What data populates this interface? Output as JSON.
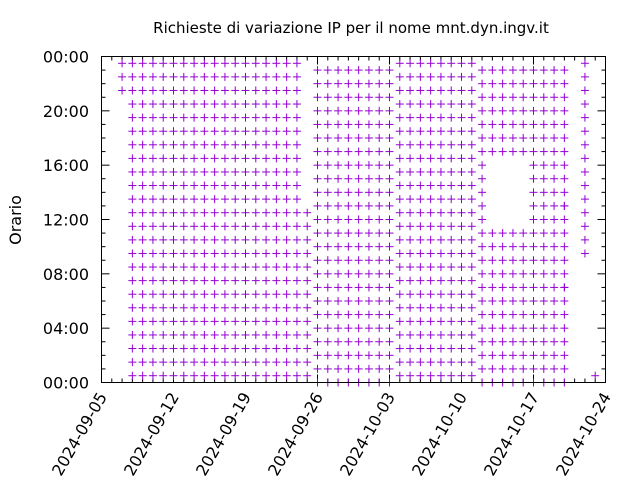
{
  "chart_data": {
    "type": "scatter",
    "title": "Richieste di variazione IP per il nome mnt.dyn.ingv.it",
    "xlabel": "",
    "ylabel": "Orario",
    "xlim": [
      "2024-09-05",
      "2024-10-24"
    ],
    "ylim": [
      "00:00",
      "24:00"
    ],
    "x_ticks": [
      "2024-09-05",
      "2024-09-12",
      "2024-09-19",
      "2024-09-26",
      "2024-10-03",
      "2024-10-10",
      "2024-10-17",
      "2024-10-24"
    ],
    "y_ticks": [
      "00:00",
      "04:00",
      "08:00",
      "12:00",
      "16:00",
      "20:00",
      "00:00"
    ],
    "marker": "+",
    "color": "#9400d3",
    "grid": false,
    "legend": "none",
    "series": [
      {
        "values_note_free": true,
        "points": [
          [
            "2024-09-07 21:30",
            "2024-09-07 22:30",
            "2024-09-07 23:30"
          ],
          [
            "2024-09-08 00:30",
            "2024-09-08 01:30",
            "2024-09-08 02:30",
            "2024-09-08 03:30",
            "2024-09-08 04:30",
            "2024-09-08 05:30",
            "2024-09-08 06:30",
            "2024-09-08 07:30",
            "2024-09-08 08:30",
            "2024-09-08 09:30",
            "2024-09-08 10:30",
            "2024-09-08 11:30",
            "2024-09-08 12:30",
            "2024-09-08 13:30",
            "2024-09-08 14:30",
            "2024-09-08 15:30",
            "2024-09-08 16:30",
            "2024-09-08 17:30",
            "2024-09-08 18:30",
            "2024-09-08 19:30",
            "2024-09-08 20:30",
            "2024-09-08 21:30",
            "2024-09-08 22:30",
            "2024-09-08 23:30"
          ]
        ]
      }
    ],
    "segments": [
      {
        "from": "2024-09-08",
        "to": "2024-09-25",
        "minute": 30,
        "first_day": "2024-09-08",
        "first_hour": 0
      },
      {
        "from": "2024-09-26",
        "to": "2024-10-03",
        "minute": 0,
        "first_day": "2024-09-26",
        "first_hour": 0
      },
      {
        "from": "2024-10-04",
        "to": "2024-10-11",
        "minute": 30,
        "first_day": "2024-10-04",
        "first_hour": 0
      },
      {
        "from": "2024-10-12",
        "to": "2024-10-20",
        "minute": 0,
        "first_day": "2024-10-12",
        "first_hour": 0
      }
    ],
    "start_day_points": {
      "day": "2024-09-07",
      "hours": [
        21,
        22,
        23
      ],
      "minute": 30
    },
    "gaps": [
      {
        "day": "2024-09-25",
        "hours_from": 13,
        "hours_to": 23
      },
      {
        "day": "2024-10-13",
        "hours_from": 12,
        "hours_to": 16
      },
      {
        "day": "2024-10-14",
        "hours_from": 12,
        "hours_to": 16
      },
      {
        "day": "2024-10-15",
        "hours_from": 12,
        "hours_to": 16
      },
      {
        "day": "2024-10-16",
        "hours_from": 12,
        "hours_to": 16
      }
    ],
    "end_points": [
      {
        "day": "2024-10-20",
        "hours": [
          7,
          13
        ],
        "minute": 0
      },
      {
        "day": "2024-10-22",
        "hours": [
          9,
          10,
          11,
          12,
          13,
          14,
          15,
          16,
          17,
          18,
          19,
          20,
          21,
          22,
          23
        ],
        "minute": 30
      },
      {
        "day": "2024-10-23",
        "hours": [
          0
        ],
        "minute": 30
      }
    ]
  }
}
